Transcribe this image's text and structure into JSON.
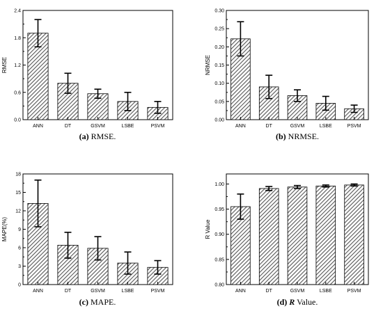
{
  "chart_data": [
    {
      "type": "bar",
      "panel": "a",
      "categories": [
        "ANN",
        "DT",
        "GSVM",
        "LSBE",
        "PSVM"
      ],
      "values": [
        1.9,
        0.8,
        0.57,
        0.4,
        0.27
      ],
      "errors": [
        0.3,
        0.22,
        0.1,
        0.2,
        0.13
      ],
      "ylabel": "RMSE",
      "ylim": [
        0,
        2.4
      ],
      "yticks": [
        "0.0",
        "0.6",
        "1.2",
        "1.8",
        "2.4"
      ],
      "caption_tag": "(a)",
      "caption_text": " RMSE."
    },
    {
      "type": "bar",
      "panel": "b",
      "categories": [
        "ANN",
        "DT",
        "GSVM",
        "LSBE",
        "PSVM"
      ],
      "values": [
        0.222,
        0.09,
        0.066,
        0.045,
        0.03
      ],
      "errors": [
        0.047,
        0.032,
        0.016,
        0.019,
        0.01
      ],
      "ylabel": "NRMSE",
      "ylim": [
        0,
        0.3
      ],
      "yticks": [
        "0.00",
        "0.05",
        "0.10",
        "0.15",
        "0.20",
        "0.25",
        "0.30"
      ],
      "caption_tag": "(b)",
      "caption_text": " NRMSE."
    },
    {
      "type": "bar",
      "panel": "c",
      "categories": [
        "ANN",
        "DT",
        "GSVM",
        "LSBE",
        "PSVM"
      ],
      "values": [
        13.2,
        6.4,
        5.9,
        3.5,
        2.8
      ],
      "errors": [
        3.8,
        2.1,
        1.9,
        1.8,
        1.1
      ],
      "ylabel": "MAPE(%)",
      "ylim": [
        0,
        18
      ],
      "yticks": [
        "0",
        "3",
        "6",
        "9",
        "12",
        "15",
        "18"
      ],
      "caption_tag": "(c)",
      "caption_text": " MAPE."
    },
    {
      "type": "bar",
      "panel": "d",
      "categories": [
        "ANN",
        "DT",
        "GSVM",
        "LSBE",
        "PSVM"
      ],
      "values": [
        0.955,
        0.991,
        0.994,
        0.996,
        0.998
      ],
      "errors": [
        0.025,
        0.004,
        0.003,
        0.002,
        0.002
      ],
      "ylabel": "R Value",
      "ylim": [
        0.8,
        1.02
      ],
      "yticks": [
        "0.80",
        "0.85",
        "0.90",
        "0.95",
        "1.00"
      ],
      "caption_tag": "(d)",
      "caption_italic": "R",
      "caption_text": " Value."
    }
  ]
}
